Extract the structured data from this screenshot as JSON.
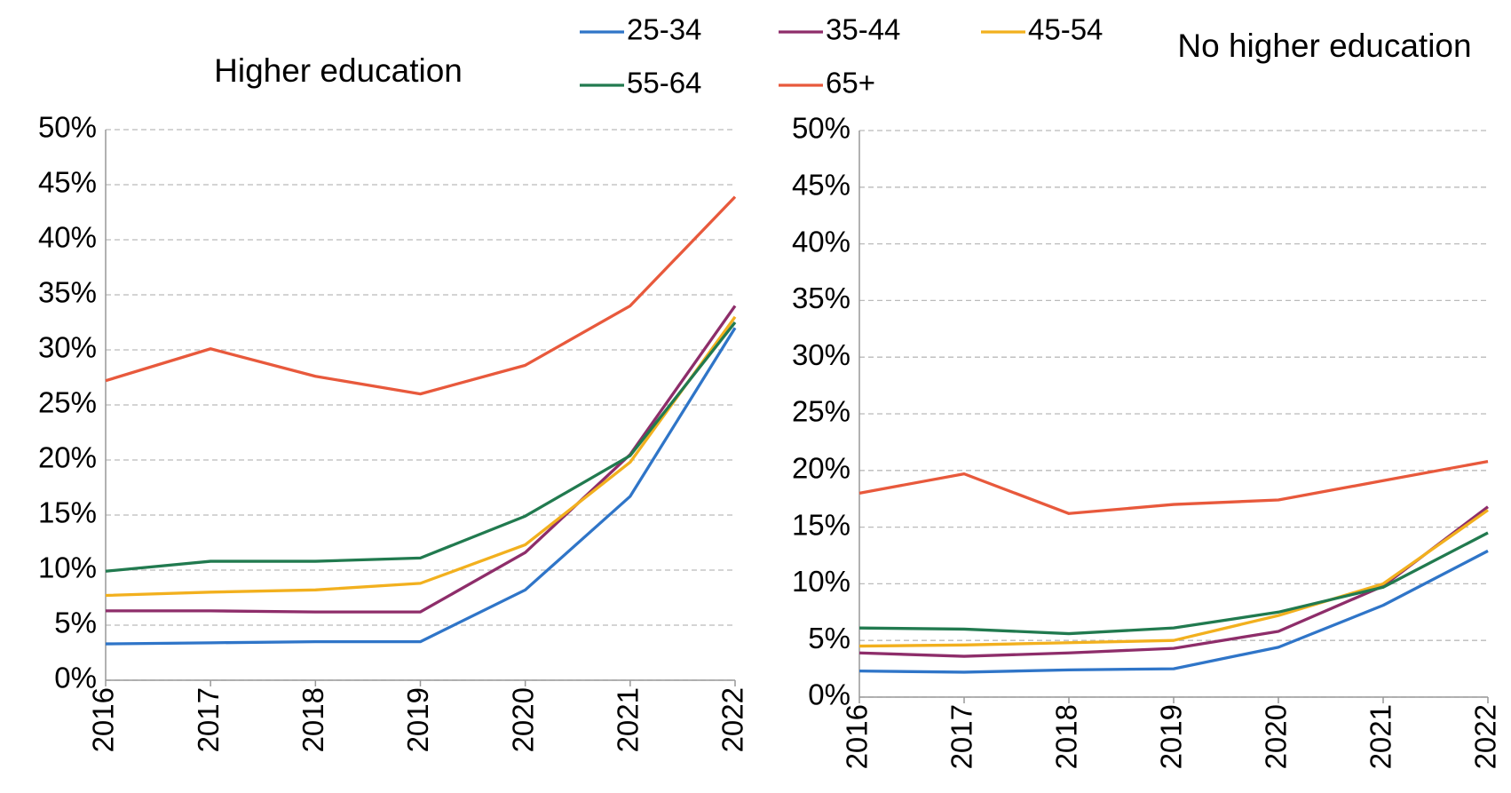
{
  "legend": [
    "chart_data.0.series"
  ],
  "chart_data": [
    {
      "type": "line",
      "title": "Higher education",
      "x": [
        "2016",
        "2017",
        "2018",
        "2019",
        "2020",
        "2021",
        "2022"
      ],
      "ylim": [
        0,
        50
      ],
      "yticks": [
        {
          "value": 0,
          "label": "0%"
        },
        {
          "value": 5,
          "label": "5%"
        },
        {
          "value": 10,
          "label": "10%"
        },
        {
          "value": 15,
          "label": "15%"
        },
        {
          "value": 20,
          "label": "20%"
        },
        {
          "value": 25,
          "label": "25%"
        },
        {
          "value": 30,
          "label": "30%"
        },
        {
          "value": 35,
          "label": "35%"
        },
        {
          "value": 40,
          "label": "40%"
        },
        {
          "value": 45,
          "label": "45%"
        },
        {
          "value": 50,
          "label": "50%"
        }
      ],
      "grid": true,
      "series": [
        {
          "name": "25-34",
          "color": "#2f75c8",
          "values": [
            3.3,
            3.4,
            3.5,
            3.5,
            8.2,
            16.7,
            32.0
          ]
        },
        {
          "name": "35-44",
          "color": "#8e2d6a",
          "values": [
            6.3,
            6.3,
            6.2,
            6.2,
            11.6,
            20.5,
            34.0
          ]
        },
        {
          "name": "45-54",
          "color": "#f2b01e",
          "values": [
            7.7,
            8.0,
            8.2,
            8.8,
            12.3,
            19.8,
            33.0
          ]
        },
        {
          "name": "55-64",
          "color": "#217a4f",
          "values": [
            9.9,
            10.8,
            10.8,
            11.1,
            14.9,
            20.4,
            32.5
          ]
        },
        {
          "name": "65+",
          "color": "#e8593c",
          "values": [
            27.2,
            30.1,
            27.6,
            26.0,
            28.6,
            34.0,
            43.9
          ]
        }
      ]
    },
    {
      "type": "line",
      "title": "No higher education",
      "x": [
        "2016",
        "2017",
        "2018",
        "2019",
        "2020",
        "2021",
        "2022"
      ],
      "ylim": [
        0,
        50
      ],
      "yticks": [
        {
          "value": 0,
          "label": "0%"
        },
        {
          "value": 5,
          "label": "5%"
        },
        {
          "value": 10,
          "label": "10%"
        },
        {
          "value": 15,
          "label": "15%"
        },
        {
          "value": 20,
          "label": "20%"
        },
        {
          "value": 25,
          "label": "25%"
        },
        {
          "value": 30,
          "label": "30%"
        },
        {
          "value": 35,
          "label": "35%"
        },
        {
          "value": 40,
          "label": "40%"
        },
        {
          "value": 45,
          "label": "45%"
        },
        {
          "value": 50,
          "label": "50%"
        }
      ],
      "grid": true,
      "series": [
        {
          "color": "#2f75c8",
          "values": [
            2.3,
            2.2,
            2.4,
            2.5,
            4.4,
            8.1,
            12.9
          ]
        },
        {
          "color": "#8e2d6a",
          "values": [
            3.9,
            3.6,
            3.9,
            4.3,
            5.8,
            9.8,
            16.8
          ]
        },
        {
          "color": "#f2b01e",
          "values": [
            4.5,
            4.6,
            4.8,
            5.0,
            7.2,
            10.0,
            16.5
          ]
        },
        {
          "color": "#217a4f",
          "values": [
            6.1,
            6.0,
            5.6,
            6.1,
            7.5,
            9.7,
            14.5
          ]
        },
        {
          "color": "#e8593c",
          "values": [
            18.0,
            19.7,
            16.2,
            17.0,
            17.4,
            19.1,
            20.8
          ]
        }
      ]
    }
  ]
}
